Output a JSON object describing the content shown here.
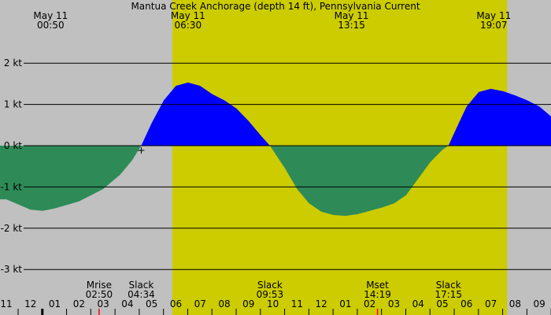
{
  "chart_data": {
    "type": "area",
    "title": "Mantua Creek Anchorage (depth 14 ft), Pennsylvania Current",
    "y_unit": "kt",
    "ylim": [
      -3.5,
      3.5
    ],
    "y_ticks": [
      {
        "value": 2,
        "label": "2 kt"
      },
      {
        "value": 1,
        "label": "1 kt"
      },
      {
        "value": 0,
        "label": "0 kt"
      },
      {
        "value": -1,
        "label": "-1 kt"
      },
      {
        "value": -2,
        "label": "-2 kt"
      },
      {
        "value": -3,
        "label": "-3 kt"
      }
    ],
    "xlim_hours": [
      23.0,
      33.5
    ],
    "daylight_hours": [
      5.85,
      19.67
    ],
    "top_labels": [
      {
        "hour": 0.83,
        "date": "May 11",
        "time": "00:50"
      },
      {
        "hour": 6.5,
        "date": "May 11",
        "time": "06:30"
      },
      {
        "hour": 13.25,
        "date": "May 11",
        "time": "13:15"
      },
      {
        "hour": 19.12,
        "date": "May 11",
        "time": "19:07"
      }
    ],
    "events": [
      {
        "hour": 2.83,
        "name": "Mrise",
        "time": "02:50"
      },
      {
        "hour": 4.57,
        "name": "Slack",
        "time": "04:34"
      },
      {
        "hour": 9.88,
        "name": "Slack",
        "time": "09:53"
      },
      {
        "hour": 14.32,
        "name": "Mset",
        "time": "14:19"
      },
      {
        "hour": 17.25,
        "name": "Slack",
        "time": "17:15"
      }
    ],
    "hour_ticks": [
      "11",
      "12",
      "01",
      "02",
      "03",
      "04",
      "05",
      "06",
      "07",
      "08",
      "09",
      "10",
      "11",
      "12",
      "01",
      "02",
      "03",
      "04",
      "05",
      "06",
      "07",
      "08",
      "09"
    ],
    "hour_tick_start": -1,
    "midnight_hour": 0,
    "mark_hours": [
      2.83,
      14.32
    ],
    "current_hour": 4.57,
    "series": [
      {
        "x": [
          -1.0,
          0.0,
          0.5,
          1.0,
          2.0,
          3.0,
          3.7,
          4.2,
          4.57,
          5.0,
          5.5,
          6.0,
          6.5,
          7.0,
          7.5,
          8.0,
          8.5,
          9.0,
          9.5,
          9.88,
          10.5,
          11.0,
          11.5,
          12.0,
          12.5,
          13.0,
          13.5,
          14.0,
          14.5,
          15.0,
          15.5,
          16.0,
          16.5,
          17.0,
          17.25,
          17.6,
          18.0,
          18.5,
          19.0,
          19.5,
          20.0,
          20.5,
          21.0,
          21.5,
          21.55
        ],
        "y": [
          -1.3,
          -1.55,
          -1.58,
          -1.52,
          -1.35,
          -1.05,
          -0.7,
          -0.35,
          0.0,
          0.55,
          1.1,
          1.45,
          1.53,
          1.45,
          1.25,
          1.1,
          0.9,
          0.6,
          0.25,
          0.0,
          -0.55,
          -1.05,
          -1.4,
          -1.6,
          -1.68,
          -1.7,
          -1.66,
          -1.58,
          -1.5,
          -1.4,
          -1.2,
          -0.8,
          -0.4,
          -0.1,
          0.0,
          0.45,
          0.95,
          1.3,
          1.38,
          1.32,
          1.22,
          1.1,
          0.95,
          0.7,
          0.68
        ],
        "flood_color": "#0000ff",
        "ebb_color": "#2e8b57"
      }
    ],
    "colors": {
      "night": "#c0c0c0",
      "day": "#cccc00",
      "gridline": "#000000",
      "mark": "#ff0000"
    }
  }
}
